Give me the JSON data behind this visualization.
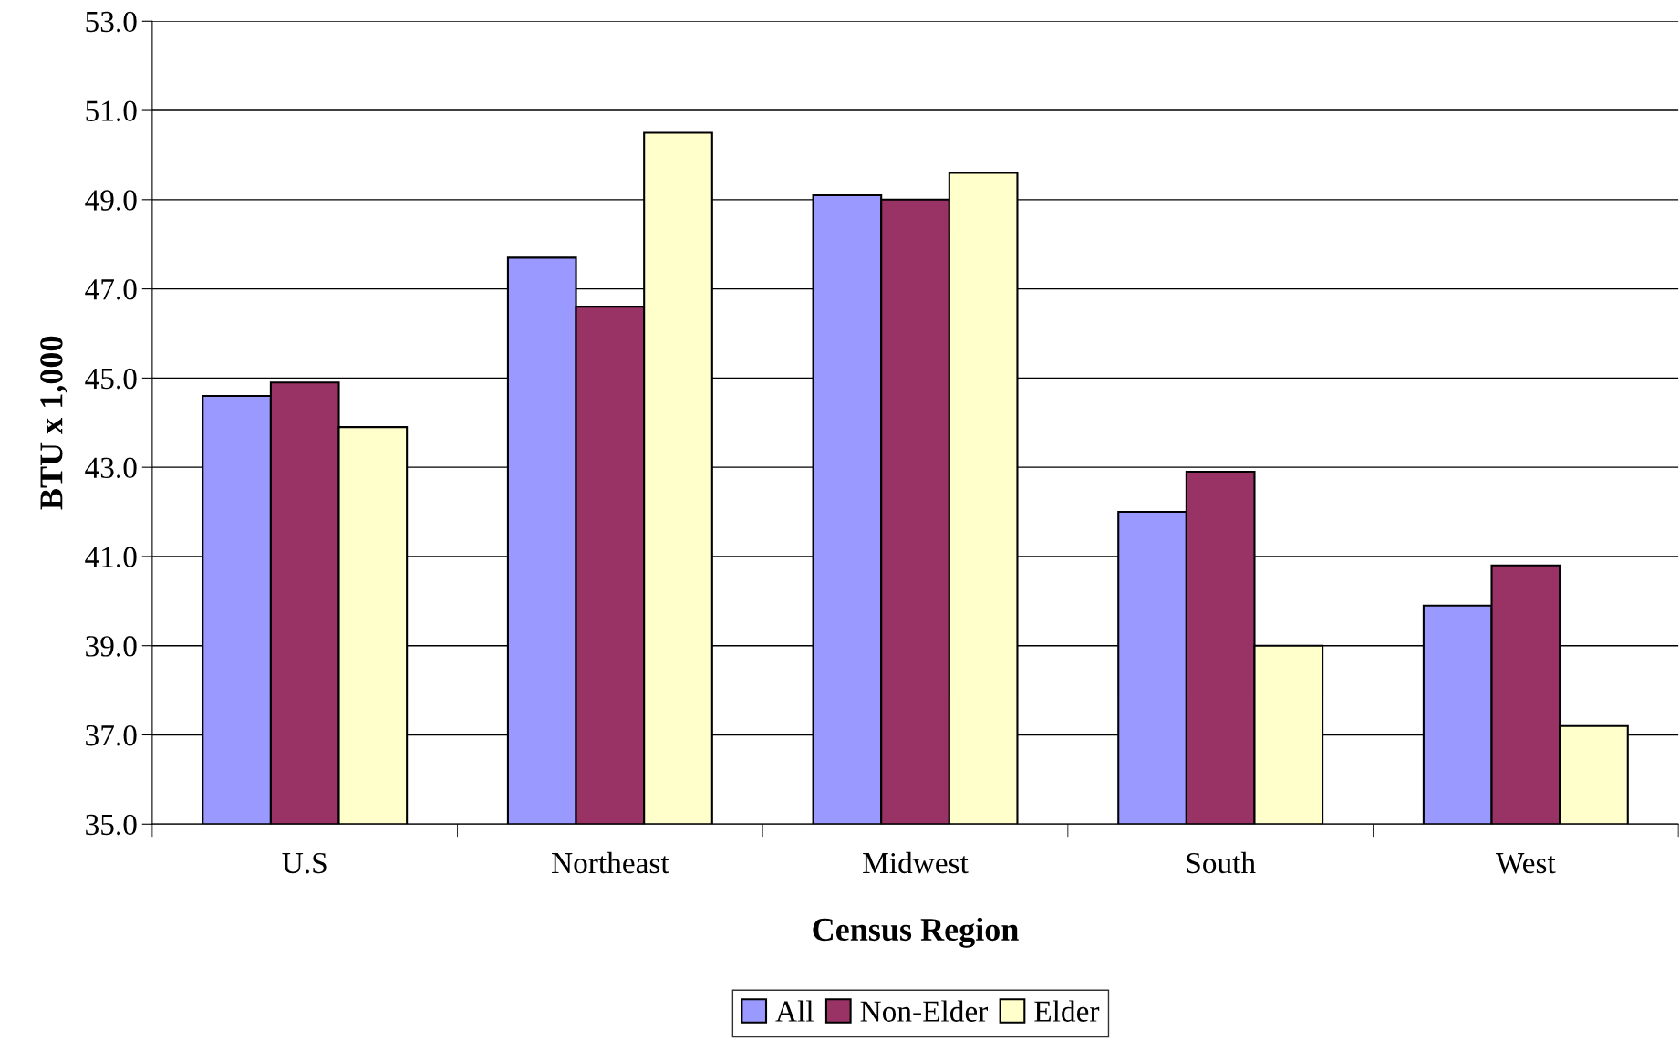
{
  "chart_data": {
    "type": "bar",
    "xlabel": "Census Region",
    "ylabel": "BTU x 1,000",
    "categories": [
      "U.S",
      "Northeast",
      "Midwest",
      "South",
      "West"
    ],
    "series": [
      {
        "name": "All",
        "color": "#9999ff",
        "values": [
          44.6,
          47.7,
          49.1,
          42.0,
          39.9
        ]
      },
      {
        "name": "Non-Elder",
        "color": "#993366",
        "values": [
          44.9,
          46.6,
          49.0,
          42.9,
          40.8
        ]
      },
      {
        "name": "Elder",
        "color": "#ffffcc",
        "values": [
          43.9,
          50.5,
          49.6,
          39.0,
          37.2
        ]
      }
    ],
    "ylim": [
      35,
      53
    ],
    "yticks": [
      {
        "value": 35,
        "label": "35.0"
      },
      {
        "value": 37,
        "label": "37.0"
      },
      {
        "value": 39,
        "label": "39.0"
      },
      {
        "value": 41,
        "label": "41.0"
      },
      {
        "value": 43,
        "label": "43.0"
      },
      {
        "value": 45,
        "label": "45.0"
      },
      {
        "value": 47,
        "label": "47.0"
      },
      {
        "value": 49,
        "label": "49.0"
      },
      {
        "value": 51,
        "label": "51.0"
      },
      {
        "value": 53,
        "label": "53.0"
      }
    ],
    "grid": "y",
    "legend": "bottom"
  }
}
